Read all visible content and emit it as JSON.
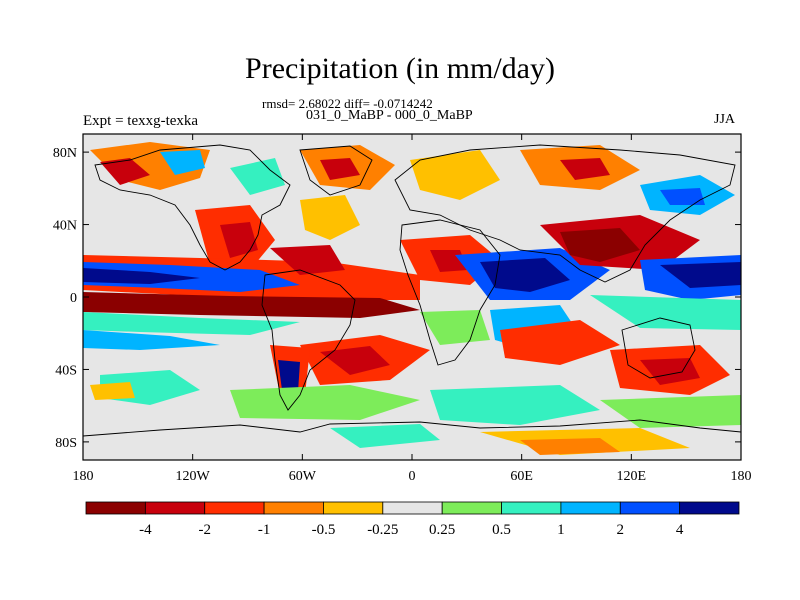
{
  "title": "Precipitation (in mm/day)",
  "stats_line": "rmsd= 2.68022 diff= -0.0714242",
  "period_line": "031_0_MaBP - 000_0_MaBP",
  "experiment_label": "Expt = texxg-texka",
  "season_label": "JJA",
  "map": {
    "type": "filled-contour-map",
    "variable": "Precipitation difference",
    "units": "mm/day",
    "projection": "cylindrical-equidistant",
    "lon_range": [
      -180,
      180
    ],
    "lat_range": [
      -90,
      90
    ],
    "y_ticks": [
      {
        "lat": 80,
        "label": "80N"
      },
      {
        "lat": 40,
        "label": "40N"
      },
      {
        "lat": 0,
        "label": "0"
      },
      {
        "lat": -40,
        "label": "40S"
      },
      {
        "lat": -80,
        "label": "80S"
      }
    ],
    "x_ticks": [
      {
        "lon": -180,
        "label": "180"
      },
      {
        "lon": -120,
        "label": "120W"
      },
      {
        "lon": -60,
        "label": "60W"
      },
      {
        "lon": 0,
        "label": "0"
      },
      {
        "lon": 60,
        "label": "60E"
      },
      {
        "lon": 120,
        "label": "120E"
      },
      {
        "lon": 180,
        "label": "180"
      }
    ]
  },
  "colorbar": {
    "colors": [
      "#8b0000",
      "#c8000c",
      "#ff2d00",
      "#ff8000",
      "#ffc000",
      "#e6e6e6",
      "#7dec5a",
      "#35f0c0",
      "#00b4ff",
      "#0050ff",
      "#000a8c"
    ],
    "levels": [
      "-4",
      "-2",
      "-1",
      "-0.5",
      "-0.25",
      "0.25",
      "0.5",
      "1",
      "2",
      "4"
    ]
  }
}
